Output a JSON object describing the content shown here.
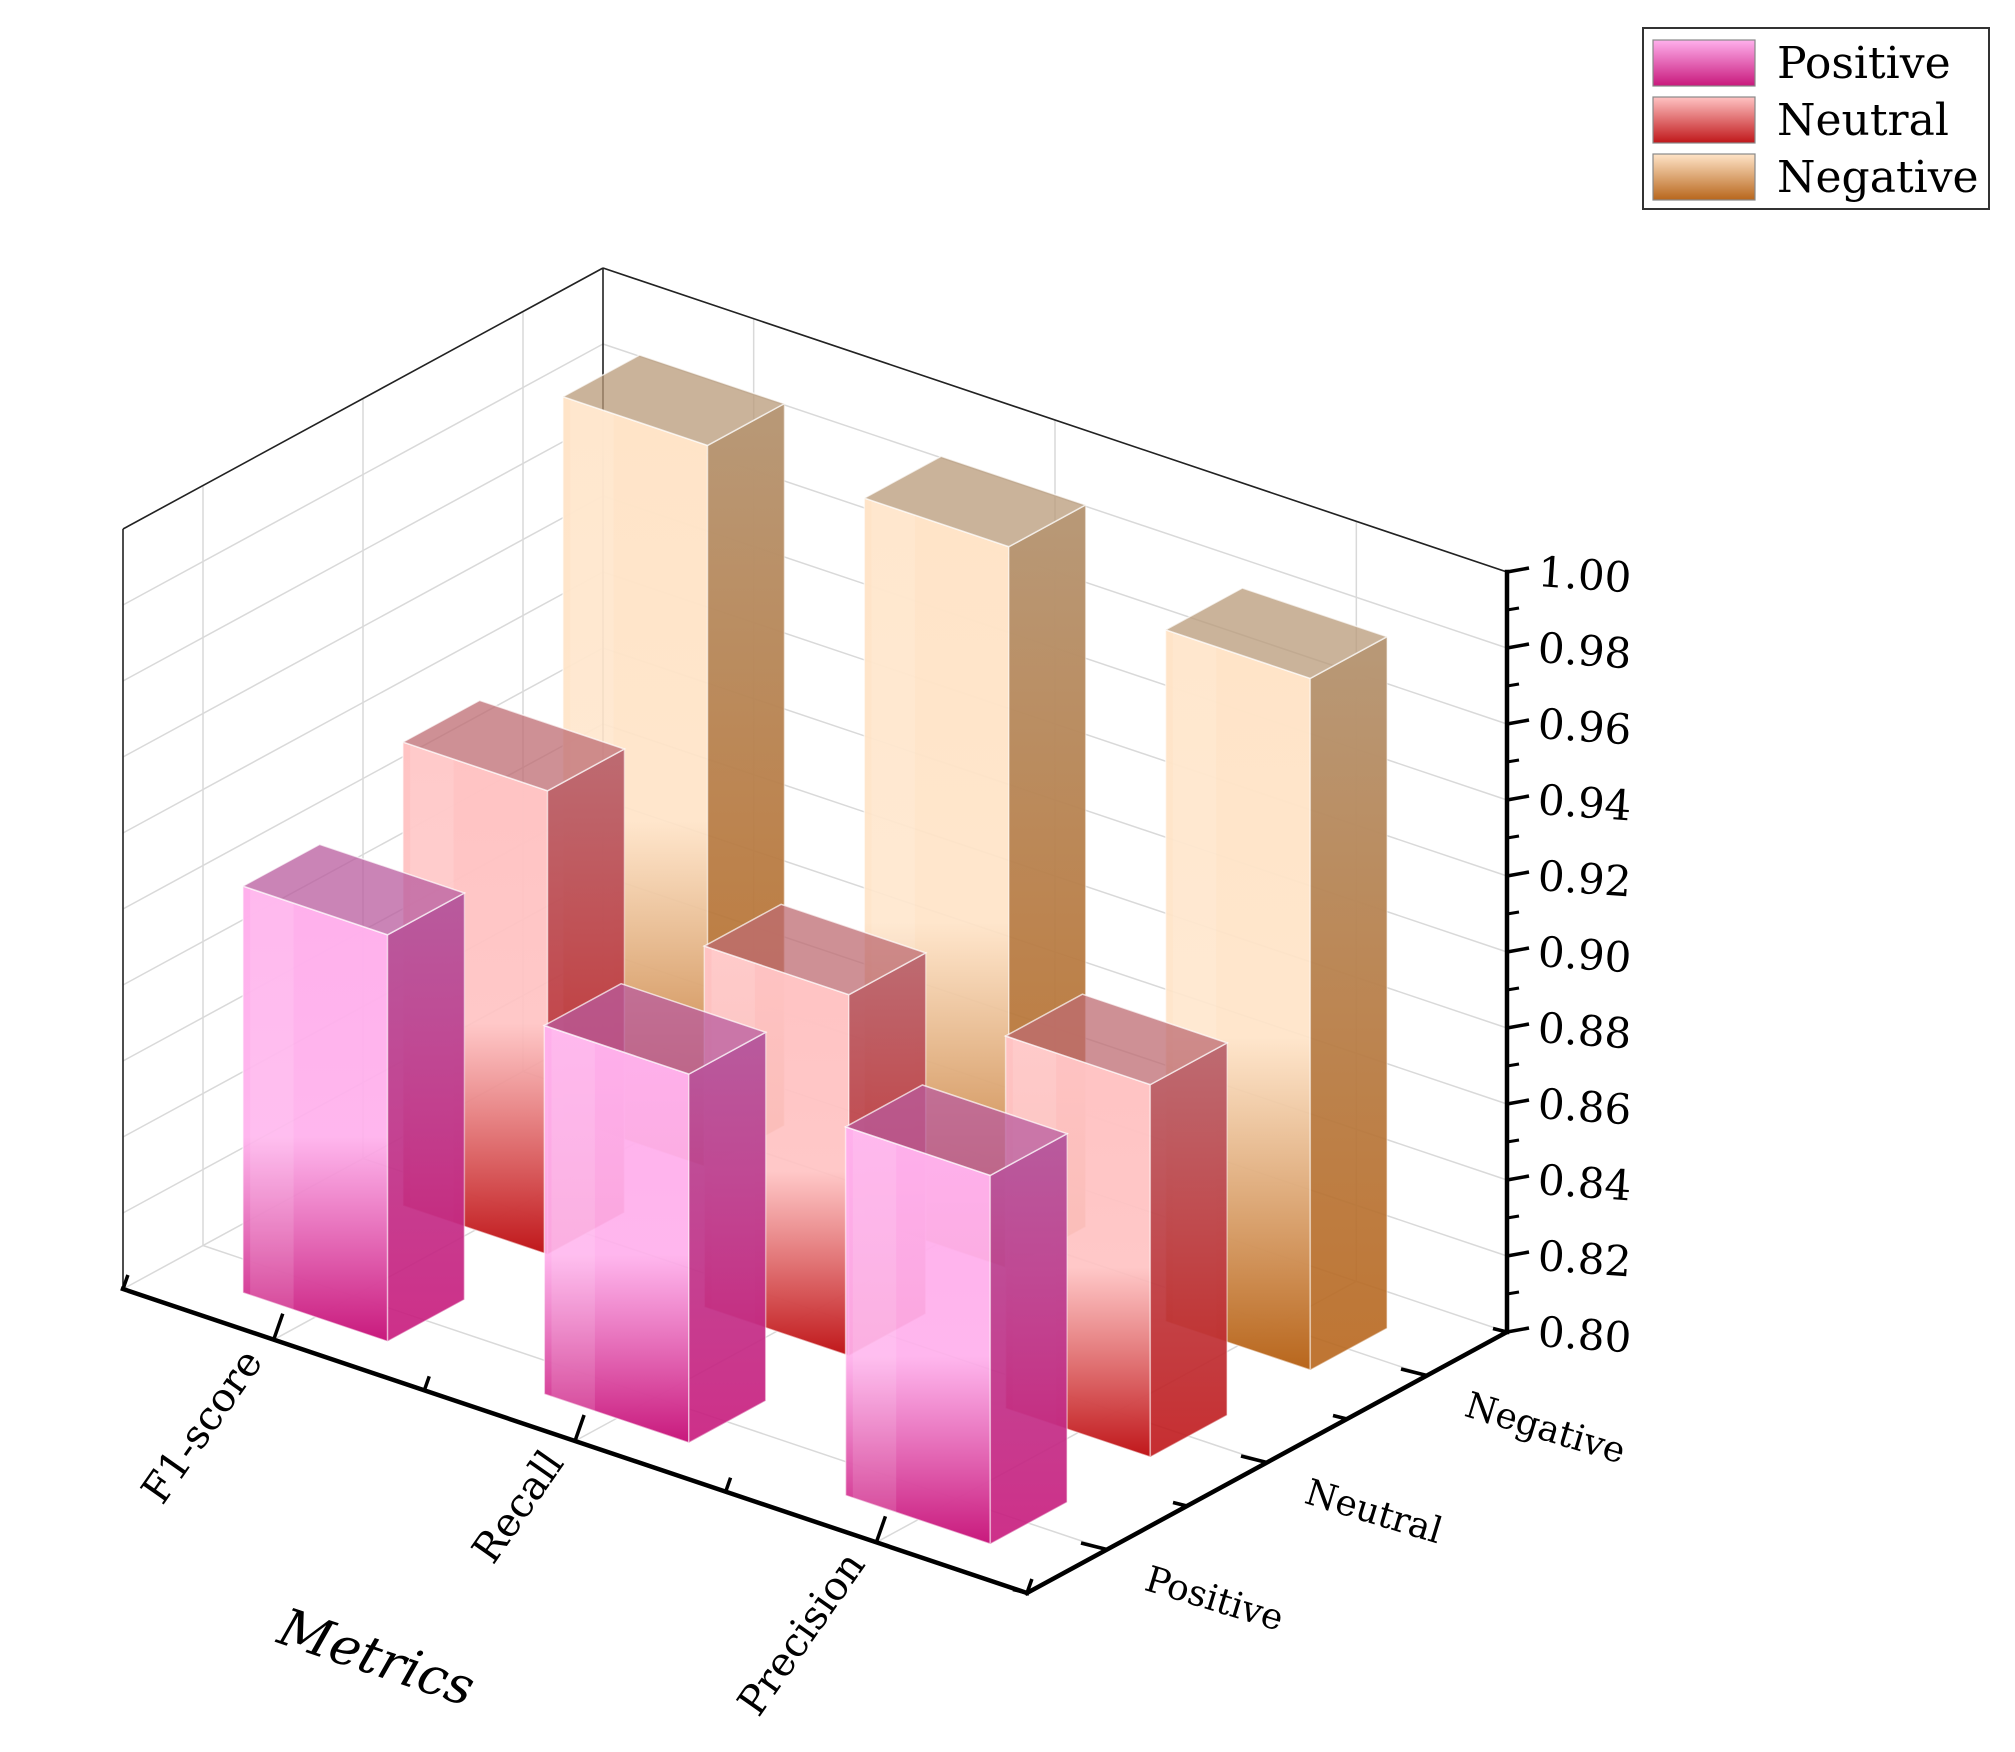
{
  "chart_data": {
    "type": "bar",
    "subtype": "3d-bar",
    "xlabel": "Metrics",
    "ylabel": "",
    "zlabel": "",
    "categories": [
      "F1-score",
      "Recall",
      "Precision"
    ],
    "classes": [
      "Positive",
      "Neutral",
      "Negative"
    ],
    "series": [
      {
        "name": "Positive",
        "values": [
          0.907,
          0.897,
          0.897
        ]
      },
      {
        "name": "Neutral",
        "values": [
          0.922,
          0.895,
          0.898
        ]
      },
      {
        "name": "Negative",
        "values": [
          0.99,
          0.99,
          0.982
        ]
      }
    ],
    "zlim": [
      0.8,
      1.0
    ],
    "zticks": [
      "0.80",
      "0.82",
      "0.84",
      "0.86",
      "0.88",
      "0.90",
      "0.92",
      "0.94",
      "0.96",
      "0.98",
      "1.00"
    ],
    "grid": true,
    "legend": {
      "position": "top-right",
      "entries": [
        "Positive",
        "Neutral",
        "Negative"
      ]
    },
    "colors": {
      "Positive": {
        "top": "#ffb0ec",
        "bottom": "#c8197c",
        "side": "#b85b9d"
      },
      "Neutral": {
        "top": "#ffc3c3",
        "bottom": "#c0171a",
        "side": "#bd6b72"
      },
      "Negative": {
        "top": "#ffe4c8",
        "bottom": "#b8661c",
        "side": "#b89978"
      }
    }
  }
}
